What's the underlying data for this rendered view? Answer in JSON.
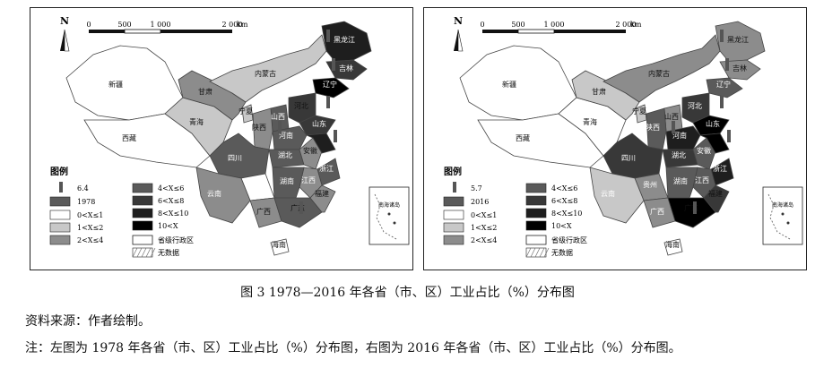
{
  "caption": "图 3   1978—2016 年各省（市、区）工业占比（%）分布图",
  "source": "资料来源：作者绘制。",
  "note": "注：左图为 1978 年各省（市、区）工业占比（%）分布图，右图为 2016 年各省（市、区）工业占比（%）分布图。",
  "north_label": "N",
  "scale": {
    "ticks": [
      "0",
      "500",
      "1 000",
      "2 000"
    ],
    "unit": "km"
  },
  "legend": {
    "title": "图例",
    "classes": [
      {
        "label": "0<X≤1",
        "color": "#ffffff"
      },
      {
        "label": "1<X≤2",
        "color": "#c8c8c8"
      },
      {
        "label": "2<X≤4",
        "color": "#8c8c8c"
      },
      {
        "label": "4<X≤6",
        "color": "#5a5a5a"
      },
      {
        "label": "6<X≤8",
        "color": "#383838"
      },
      {
        "label": "8<X≤10",
        "color": "#1e1e1e"
      },
      {
        "label": "10<X",
        "color": "#000000"
      }
    ],
    "boundary_label": "省级行政区",
    "nodata_label": "无数据"
  },
  "maps": [
    {
      "year_label": "1978",
      "bar_value": "6.4"
    },
    {
      "year_label": "2016",
      "bar_value": "5.7"
    }
  ],
  "province_labels": [
    "新疆",
    "西藏",
    "青海",
    "甘肃",
    "内蒙古",
    "黑龙江",
    "吉林",
    "辽宁",
    "宁夏",
    "山西",
    "陕西",
    "河南",
    "湖北",
    "四川",
    "贵州",
    "云南",
    "广西",
    "湖南",
    "江西",
    "安徽",
    "浙江",
    "福建",
    "广东",
    "海南",
    "山东",
    "河北"
  ],
  "inset_label": "南海诸岛"
}
